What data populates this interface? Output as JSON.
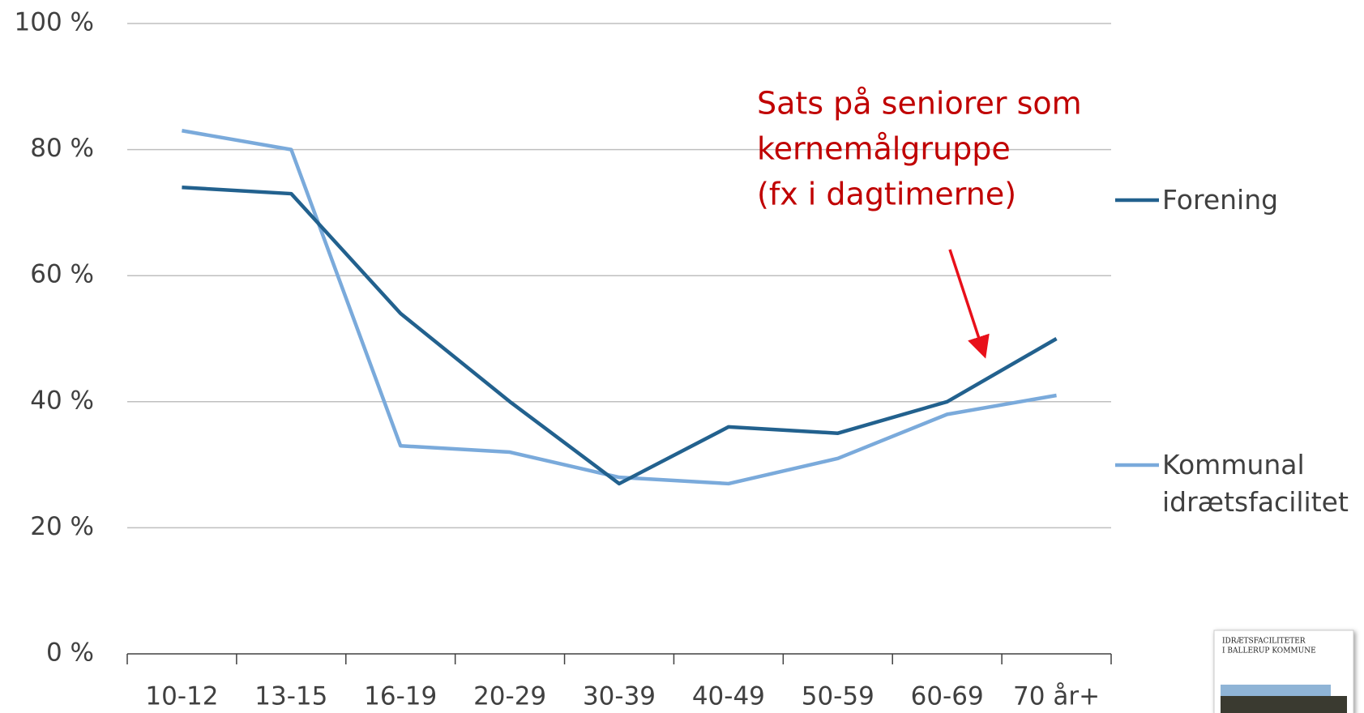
{
  "chart_data": {
    "type": "line",
    "categories": [
      "10-12",
      "13-15",
      "16-19",
      "20-29",
      "30-39",
      "40-49",
      "50-59",
      "60-69",
      "70 år+"
    ],
    "series": [
      {
        "name": "Forening",
        "color": "#22618e",
        "values": [
          74,
          73,
          54,
          40,
          27,
          36,
          35,
          40,
          50
        ]
      },
      {
        "name": "Kommunal idrætsfacilitet",
        "color": "#7aaadb",
        "values": [
          83,
          80,
          33,
          32,
          28,
          27,
          31,
          38,
          41
        ]
      }
    ],
    "ylim": [
      0,
      100
    ],
    "yticks": [
      {
        "value": 0,
        "label": "0 %"
      },
      {
        "value": 20,
        "label": "20 %"
      },
      {
        "value": 40,
        "label": "40 %"
      },
      {
        "value": 60,
        "label": "60 %"
      },
      {
        "value": 80,
        "label": "80 %"
      },
      {
        "value": 100,
        "label": "100 %"
      }
    ],
    "grid": true,
    "legend": "right",
    "annotation": [
      "Sats på seniorer som",
      "kernemålgruppe",
      "(fx i dagtimerne)"
    ],
    "annotation_color": "#c00000"
  },
  "thumbnail": {
    "title_lines": [
      "IDRÆTSFACILITETER",
      "I BALLERUP KOMMUNE"
    ]
  }
}
